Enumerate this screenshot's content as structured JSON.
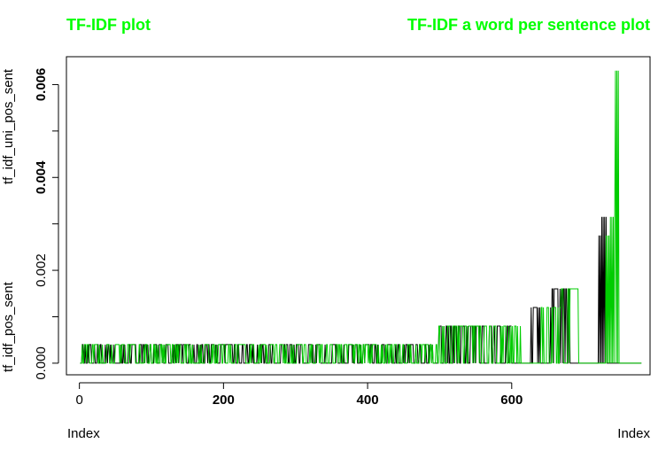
{
  "chart_data": {
    "type": "line",
    "titles": {
      "left": "TF-IDF plot",
      "right": "TF-IDF a word per sentence plot"
    },
    "title_color": "#00ff00",
    "xlabel_left": "Index",
    "xlabel_right": "Index",
    "ylabel_top": "tf_idf_uni_pos_sent",
    "ylabel_bottom": "tf_idf_pos_sent",
    "xlim": [
      -18,
      792
    ],
    "ylim": [
      -0.00025,
      0.0066
    ],
    "x_ticks": [
      0,
      200,
      400,
      600
    ],
    "x_tick_labels": [
      "0",
      "200",
      "400",
      "600"
    ],
    "x_tick_labels_bold": [
      false,
      true,
      true,
      true
    ],
    "y_ticks": [
      0,
      0.001,
      0.002,
      0.003,
      0.004,
      0.005,
      0.006
    ],
    "y_tick_labels": [
      "0.000",
      "0.002",
      "0.004",
      "0.006"
    ],
    "y_tick_label_values": [
      0,
      0.002,
      0.004,
      0.006
    ],
    "y_tick_labels_bold": [
      false,
      false,
      true,
      true
    ],
    "series": [
      {
        "color": "#000000",
        "n": 780,
        "segments": [
          {
            "from": 1,
            "to": 498,
            "level": 0.0004,
            "pattern": "dense"
          },
          {
            "from": 499,
            "to": 600,
            "level": 0.0008,
            "pattern": "dense"
          },
          {
            "from": 601,
            "to": 625,
            "level": 0.0,
            "pattern": "zero"
          },
          {
            "from": 626,
            "to": 655,
            "level": 0.0012,
            "pattern": "dense"
          },
          {
            "from": 656,
            "to": 680,
            "level": 0.0016,
            "pattern": "dense"
          },
          {
            "from": 681,
            "to": 720,
            "level": 0.0,
            "pattern": "zero"
          },
          {
            "from": 721,
            "to": 724,
            "level": 0.00275,
            "pattern": "spike"
          },
          {
            "from": 725,
            "to": 732,
            "level": 0.00315,
            "pattern": "spike"
          },
          {
            "from": 733,
            "to": 780,
            "level": 0.0,
            "pattern": "zero"
          }
        ]
      },
      {
        "color": "#00cc00",
        "n": 780,
        "segments": [
          {
            "from": 1,
            "to": 498,
            "level": 0.0004,
            "pattern": "dense"
          },
          {
            "from": 499,
            "to": 612,
            "level": 0.0008,
            "pattern": "dense"
          },
          {
            "from": 613,
            "to": 640,
            "level": 0.0,
            "pattern": "zero"
          },
          {
            "from": 641,
            "to": 668,
            "level": 0.0012,
            "pattern": "dense"
          },
          {
            "from": 669,
            "to": 692,
            "level": 0.0016,
            "pattern": "dense"
          },
          {
            "from": 693,
            "to": 730,
            "level": 0.0,
            "pattern": "zero"
          },
          {
            "from": 731,
            "to": 736,
            "level": 0.00275,
            "pattern": "spike"
          },
          {
            "from": 737,
            "to": 743,
            "level": 0.00315,
            "pattern": "spike"
          },
          {
            "from": 744,
            "to": 748,
            "level": 0.0063,
            "pattern": "spike"
          },
          {
            "from": 749,
            "to": 780,
            "level": 0.0,
            "pattern": "zero"
          }
        ]
      }
    ]
  }
}
